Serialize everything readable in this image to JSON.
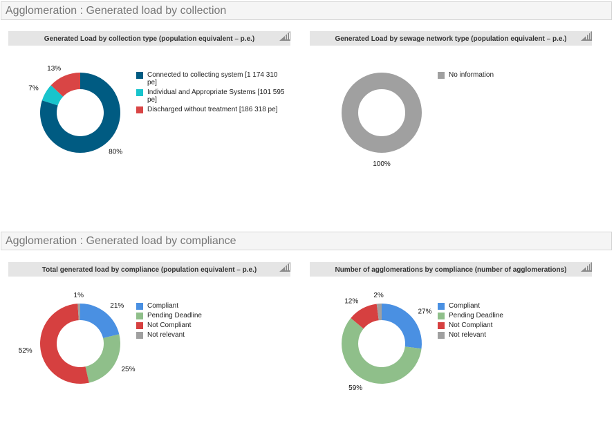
{
  "sections": [
    {
      "title": "Agglomeration : Generated load by collection"
    },
    {
      "title": "Agglomeration : Generated load by compliance"
    }
  ],
  "chart_data": [
    {
      "type": "pie",
      "variant": "donut",
      "title": "Generated Load by collection type (population equivalent – p.e.)",
      "categories": [
        "Connected to collecting system [1 174 310 pe]",
        "Individual and Appropriate Systems [101 595 pe]",
        "Discharged without treatment [186 318 pe]"
      ],
      "values": [
        80,
        7,
        13
      ],
      "labels": [
        "80%",
        "7%",
        "13%"
      ],
      "colors": [
        "#005b82",
        "#18c4cc",
        "#d94545"
      ],
      "legend": "right"
    },
    {
      "type": "pie",
      "variant": "donut",
      "title": "Generated Load by sewage network type (population equivalent – p.e.)",
      "categories": [
        "No information"
      ],
      "values": [
        100
      ],
      "labels": [
        "100%"
      ],
      "colors": [
        "#a0a0a0"
      ],
      "legend": "right"
    },
    {
      "type": "pie",
      "variant": "donut",
      "title": "Total generated load by compliance (population equivalent – p.e.)",
      "categories": [
        "Compliant",
        "Pending Deadline",
        "Not Compliant",
        "Not relevant"
      ],
      "values": [
        21,
        25,
        52,
        1
      ],
      "labels": [
        "21%",
        "25%",
        "52%",
        "1%"
      ],
      "colors": [
        "#4a90e2",
        "#8fbf8a",
        "#d64040",
        "#a0a0a0"
      ],
      "legend": "right"
    },
    {
      "type": "pie",
      "variant": "donut",
      "title": "Number of agglomerations by compliance (number of agglomerations)",
      "categories": [
        "Compliant",
        "Pending Deadline",
        "Not Compliant",
        "Not relevant"
      ],
      "values": [
        27,
        59,
        12,
        2
      ],
      "labels": [
        "27%",
        "59%",
        "12%",
        "2%"
      ],
      "colors": [
        "#4a90e2",
        "#8fbf8a",
        "#d64040",
        "#a0a0a0"
      ],
      "legend": "right"
    }
  ]
}
